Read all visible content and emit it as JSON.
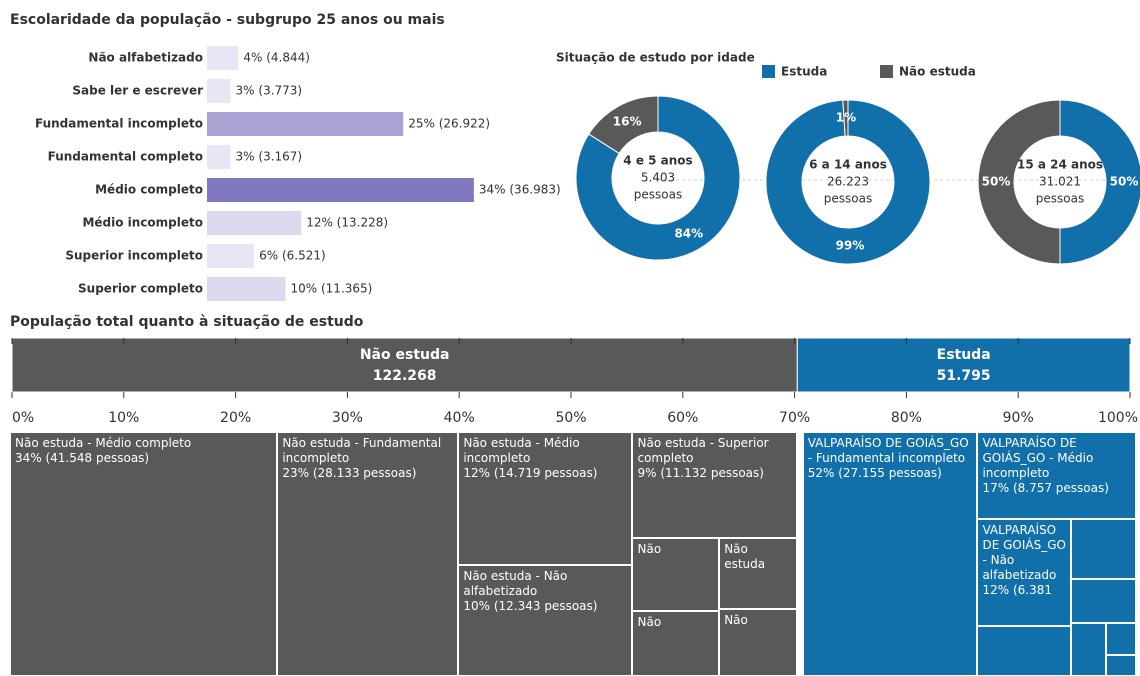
{
  "chart_data": [
    {
      "type": "hbar",
      "title": "Escolaridade da população - subgrupo 25 anos ou mais",
      "categories": [
        "Não alfabetizado",
        "Sabe ler e escrever",
        "Fundamental incompleto",
        "Fundamental completo",
        "Médio completo",
        "Médio incompleto",
        "Superior incompleto",
        "Superior completo"
      ],
      "values": [
        4,
        3,
        25,
        3,
        34,
        12,
        6,
        10
      ],
      "value_labels": [
        "4% (4.844)",
        "3% (3.773)",
        "25% (26.922)",
        "3% (3.167)",
        "34% (36.983)",
        "12% (13.228)",
        "6% (6.521)",
        "10% (11.365)"
      ],
      "colors": [
        "#e8e6f4",
        "#e8e6f4",
        "#a9a2d3",
        "#e8e6f4",
        "#8179bf",
        "#dcd9ef",
        "#e8e6f4",
        "#dcd9ef"
      ]
    },
    {
      "type": "donut",
      "title": "Situação de estudo por idade",
      "series": [
        {
          "name": "Estuda",
          "color": "#1170aa"
        },
        {
          "name": "Não estuda",
          "color": "#595959"
        }
      ],
      "groups": [
        {
          "label": "4 e 5 anos",
          "total": "5.403",
          "unit": "pessoas",
          "values": [
            84,
            16
          ],
          "value_labels": [
            "84%",
            "16%"
          ]
        },
        {
          "label": "6 a 14 anos",
          "total": "26.223",
          "unit": "pessoas",
          "values": [
            99,
            1
          ],
          "value_labels": [
            "99%",
            "1%"
          ]
        },
        {
          "label": "15 a 24 anos",
          "total": "31.021",
          "unit": "pessoas",
          "values": [
            50,
            50
          ],
          "value_labels": [
            "50%",
            "50%"
          ]
        }
      ]
    },
    {
      "type": "stacked_bar",
      "title": "População total quanto à situação de estudo",
      "series": [
        {
          "name": "Não estuda",
          "color": "#595959",
          "values": [
            70.24
          ],
          "count_labels": [
            "122.268"
          ]
        },
        {
          "name": "Estuda",
          "color": "#1170aa",
          "values": [
            29.76
          ],
          "count_labels": [
            "51.795"
          ]
        }
      ],
      "xlim": [
        0,
        100
      ],
      "xticks": [
        {
          "value": 0,
          "label": "0%"
        },
        {
          "value": 10,
          "label": "10%"
        },
        {
          "value": 20,
          "label": "20%"
        },
        {
          "value": 30,
          "label": "30%"
        },
        {
          "value": 40,
          "label": "40%"
        },
        {
          "value": 50,
          "label": "50%"
        },
        {
          "value": 60,
          "label": "60%"
        },
        {
          "value": 70,
          "label": "70%"
        },
        {
          "value": 80,
          "label": "80%"
        },
        {
          "value": 90,
          "label": "90%"
        },
        {
          "value": 100,
          "label": "100%"
        }
      ]
    },
    {
      "type": "treemap",
      "groups": [
        {
          "color": "#595959",
          "nodes": [
            {
              "name": "Não estuda - Médio completo",
              "detail": "34% (41.548 pessoas)",
              "value": 41548
            },
            {
              "name": "Não estuda - Fundamental incompleto",
              "detail": "23% (28.133 pessoas)",
              "value": 28133
            },
            {
              "name": "Não estuda - Médio incompleto",
              "detail": "12% (14.719 pessoas)",
              "value": 14719
            },
            {
              "name": "Não estuda - Não alfabetizado",
              "detail": "10% (12.343 pessoas)",
              "value": 12343
            },
            {
              "name": "Não estuda - Superior completo",
              "detail": "9% (11.132 pessoas)",
              "value": 11132
            },
            {
              "name": "Não",
              "detail": null,
              "value": 4000
            },
            {
              "name": "Não",
              "detail": null,
              "value": 3600
            },
            {
              "name": "Não estuda",
              "detail": null,
              "value": 3500
            },
            {
              "name": "Não",
              "detail": null,
              "value": 3293
            }
          ]
        },
        {
          "color": "#1170aa",
          "nodes": [
            {
              "name": "VALPARAÍSO DE GOIÁS_GO - Fundamental incompleto",
              "detail": "52% (27.155 pessoas)",
              "value": 27155
            },
            {
              "name": "VALPARAÍSO DE GOIÁS_GO - Médio incompleto",
              "detail": "17% (8.757 pessoas)",
              "value": 8757
            },
            {
              "name": "VALPARAÍSO DE GOIÁS_GO - Não alfabetizado",
              "detail": "12% (6.381",
              "value": 6381
            },
            {
              "name": null,
              "detail": null,
              "value": 3000
            },
            {
              "name": null,
              "detail": null,
              "value": 2500
            },
            {
              "name": null,
              "detail": null,
              "value": 1800
            },
            {
              "name": null,
              "detail": null,
              "value": 1200
            },
            {
              "name": null,
              "detail": null,
              "value": 600
            },
            {
              "name": null,
              "detail": null,
              "value": 402
            }
          ]
        }
      ]
    }
  ]
}
